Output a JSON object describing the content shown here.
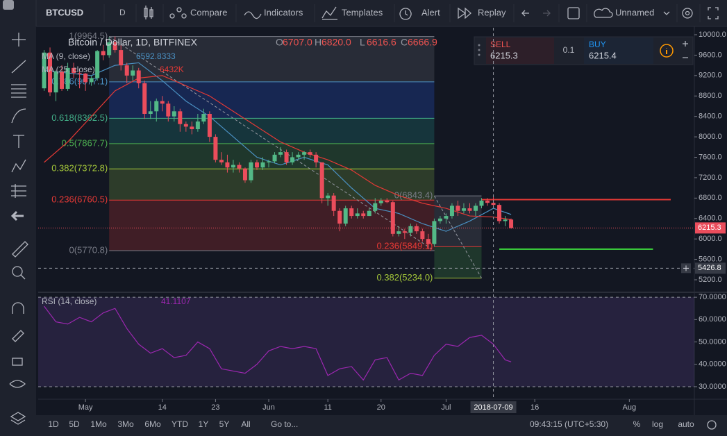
{
  "toolbar": {
    "symbol": "BTCUSD",
    "interval": "D",
    "buttons": [
      "Compare",
      "Indicators",
      "Templates",
      "Alert",
      "Replay"
    ],
    "layout_name": "Unnamed"
  },
  "trade_panel": {
    "sell_label": "SELL",
    "sell_price": "6215.3",
    "quantity": "0.1",
    "buy_label": "BUY",
    "buy_price": "6215.4"
  },
  "bottom_bar": {
    "ranges": [
      "1D",
      "5D",
      "1Mo",
      "3Mo",
      "6Mo",
      "YTD",
      "1Y",
      "5Y",
      "All"
    ],
    "goto": "Go to...",
    "time": "09:43:15 (UTC+5:30)",
    "options": [
      "%",
      "log",
      "auto"
    ]
  },
  "chart_data": {
    "type": "candlestick",
    "title": "Bitcoin / Dollar, 1D, BITFINEX",
    "ohlc": [
      {
        "key": "O",
        "value": "6707.0"
      },
      {
        "key": "H",
        "value": "6820.0"
      },
      {
        "key": "L",
        "value": "6616.6"
      },
      {
        "key": "C",
        "value": "6666.9"
      }
    ],
    "up_color": "#53b987",
    "down_color": "#eb4d5c",
    "x": [
      "2018-04-24",
      "2018-04-25",
      "2018-04-26",
      "2018-04-27",
      "2018-04-28",
      "2018-04-29",
      "2018-04-30",
      "2018-05-01",
      "2018-05-02",
      "2018-05-03",
      "2018-05-04",
      "2018-05-05",
      "2018-05-06",
      "2018-05-07",
      "2018-05-08",
      "2018-05-09",
      "2018-05-10",
      "2018-05-11",
      "2018-05-12",
      "2018-05-13",
      "2018-05-14",
      "2018-05-15",
      "2018-05-16",
      "2018-05-17",
      "2018-05-18",
      "2018-05-19",
      "2018-05-20",
      "2018-05-21",
      "2018-05-22",
      "2018-05-23",
      "2018-05-24",
      "2018-05-25",
      "2018-05-26",
      "2018-05-27",
      "2018-05-28",
      "2018-05-29",
      "2018-05-30",
      "2018-05-31",
      "2018-06-01",
      "2018-06-02",
      "2018-06-03",
      "2018-06-04",
      "2018-06-05",
      "2018-06-06",
      "2018-06-07",
      "2018-06-08",
      "2018-06-09",
      "2018-06-10",
      "2018-06-11",
      "2018-06-12",
      "2018-06-13",
      "2018-06-14",
      "2018-06-15",
      "2018-06-16",
      "2018-06-17",
      "2018-06-18",
      "2018-06-19",
      "2018-06-20",
      "2018-06-21",
      "2018-06-22",
      "2018-06-23",
      "2018-06-24",
      "2018-06-25",
      "2018-06-26",
      "2018-06-27",
      "2018-06-28",
      "2018-06-29",
      "2018-06-30",
      "2018-07-01",
      "2018-07-02",
      "2018-07-03",
      "2018-07-04",
      "2018-07-05",
      "2018-07-06",
      "2018-07-07",
      "2018-07-08",
      "2018-07-09",
      "2018-07-10",
      "2018-07-11",
      "2018-07-12"
    ],
    "open": [
      8950,
      9650,
      8870,
      9280,
      8940,
      9350,
      9250,
      9240,
      9070,
      9150,
      9680,
      9600,
      9850,
      9700,
      9400,
      9200,
      9300,
      9050,
      8450,
      8500,
      8700,
      8650,
      8400,
      8500,
      8250,
      8200,
      8150,
      8300,
      8450,
      8000,
      7550,
      7500,
      7400,
      7450,
      7380,
      7150,
      7500,
      7400,
      7500,
      7520,
      7650,
      7700,
      7500,
      7600,
      7650,
      7700,
      7650,
      7500,
      6800,
      6850,
      6550,
      6300,
      6600,
      6450,
      6500,
      6450,
      6550,
      6700,
      6750,
      6720,
      6100,
      6150,
      6120,
      6250,
      6150,
      6000,
      5900,
      6350,
      6400,
      6450,
      6650,
      6550,
      6600,
      6550,
      6650,
      6750,
      6707,
      6666.9,
      6350,
      6380
    ],
    "high": [
      9700,
      9750,
      9300,
      9400,
      9450,
      9450,
      9300,
      9250,
      9200,
      9700,
      9800,
      9950,
      9964.5,
      9800,
      9450,
      9400,
      9350,
      9100,
      8700,
      8750,
      8800,
      8700,
      8600,
      8550,
      8300,
      8300,
      8450,
      8550,
      8500,
      8050,
      7700,
      7650,
      7550,
      7500,
      7400,
      7550,
      7550,
      7600,
      7550,
      7700,
      7800,
      7750,
      7700,
      7700,
      7720,
      7750,
      7700,
      7500,
      6900,
      6900,
      6600,
      6650,
      6650,
      6600,
      6550,
      6600,
      6800,
      6800,
      6800,
      6750,
      6250,
      6200,
      6300,
      6300,
      6200,
      6100,
      6400,
      6450,
      6500,
      6700,
      6750,
      6700,
      6700,
      6700,
      6800,
      6800,
      6820,
      6700,
      6450,
      6400
    ],
    "low": [
      8900,
      8800,
      8700,
      8900,
      8900,
      9150,
      8950,
      8900,
      9000,
      9100,
      9500,
      9550,
      9650,
      9300,
      9050,
      9100,
      8950,
      8350,
      8350,
      8300,
      8500,
      8300,
      8300,
      8100,
      8100,
      8050,
      8100,
      8250,
      7900,
      7500,
      7450,
      7300,
      7300,
      7300,
      7100,
      7100,
      7350,
      7350,
      7400,
      7480,
      7600,
      7450,
      7450,
      7550,
      7550,
      7600,
      7400,
      6700,
      6650,
      6450,
      6150,
      6250,
      6400,
      6400,
      6400,
      6450,
      6500,
      6650,
      6700,
      6050,
      6050,
      6000,
      6050,
      6100,
      5950,
      5800,
      5850,
      6300,
      6300,
      6400,
      6450,
      6500,
      6500,
      6450,
      6600,
      6650,
      6616.6,
      6300,
      6250,
      6200
    ],
    "close": [
      9650,
      8870,
      9280,
      8940,
      9350,
      9250,
      9240,
      9070,
      9150,
      9680,
      9600,
      9850,
      9700,
      9400,
      9200,
      9300,
      9050,
      8450,
      8500,
      8700,
      8650,
      8400,
      8500,
      8250,
      8200,
      8150,
      8300,
      8450,
      8000,
      7550,
      7500,
      7400,
      7450,
      7380,
      7150,
      7500,
      7400,
      7500,
      7520,
      7650,
      7700,
      7500,
      7600,
      7650,
      7700,
      7650,
      7500,
      6800,
      6850,
      6550,
      6300,
      6600,
      6450,
      6500,
      6450,
      6550,
      6700,
      6750,
      6720,
      6100,
      6150,
      6120,
      6250,
      6150,
      6000,
      5900,
      6350,
      6400,
      6450,
      6650,
      6550,
      6600,
      6550,
      6650,
      6750,
      6707,
      6666.9,
      6350,
      6380,
      6215.3
    ],
    "xlim": [
      "2018-04-23",
      "2018-08-12"
    ],
    "xticks": [
      {
        "value": "2018-05-01",
        "label": "May"
      },
      {
        "value": "2018-05-14",
        "label": "14"
      },
      {
        "value": "2018-05-23",
        "label": "23"
      },
      {
        "value": "2018-06-01",
        "label": "Jun"
      },
      {
        "value": "2018-06-11",
        "label": "11"
      },
      {
        "value": "2018-06-20",
        "label": "20"
      },
      {
        "value": "2018-07-01",
        "label": "Jul"
      },
      {
        "value": "2018-07-16",
        "label": "16"
      },
      {
        "value": "2018-08-01",
        "label": "Aug"
      }
    ],
    "ylim": [
      4969,
      10136
    ],
    "yticks": [
      {
        "value": 10000,
        "label": "10000.0"
      },
      {
        "value": 9600,
        "label": "9600.0"
      },
      {
        "value": 9200,
        "label": "9200.0"
      },
      {
        "value": 8800,
        "label": "8800.0"
      },
      {
        "value": 8400,
        "label": "8400.0"
      },
      {
        "value": 8000,
        "label": "8000.0"
      },
      {
        "value": 7600,
        "label": "7600.0"
      },
      {
        "value": 7200,
        "label": "7200.0"
      },
      {
        "value": 6800,
        "label": "6800.0"
      },
      {
        "value": 6400,
        "label": "6400.0"
      },
      {
        "value": 6000,
        "label": "6000.0"
      },
      {
        "value": 5600,
        "label": "5600.0"
      },
      {
        "value": 5200,
        "label": "5200.0"
      }
    ],
    "studies": [
      {
        "name": "MA (9, close)",
        "value_label": "6592.8333",
        "color": "#4a90c2",
        "x": [
          "2018-04-24",
          "2018-04-28",
          "2018-05-02",
          "2018-05-06",
          "2018-05-10",
          "2018-05-14",
          "2018-05-18",
          "2018-05-22",
          "2018-05-26",
          "2018-05-30",
          "2018-06-03",
          "2018-06-07",
          "2018-06-11",
          "2018-06-15",
          "2018-06-19",
          "2018-06-23",
          "2018-06-27",
          "2018-07-01",
          "2018-07-05",
          "2018-07-09",
          "2018-07-12"
        ],
        "values": [
          9300,
          9250,
          9200,
          9400,
          9450,
          9100,
          8700,
          8400,
          8000,
          7600,
          7450,
          7600,
          7450,
          7000,
          6600,
          6500,
          6300,
          6150,
          6350,
          6600,
          6480
        ]
      },
      {
        "name": "MA (25, close)",
        "value_label": "6432K",
        "color": "#e53935",
        "x": [
          "2018-04-24",
          "2018-04-28",
          "2018-05-02",
          "2018-05-06",
          "2018-05-10",
          "2018-05-14",
          "2018-05-18",
          "2018-05-22",
          "2018-05-26",
          "2018-05-30",
          "2018-06-03",
          "2018-06-07",
          "2018-06-11",
          "2018-06-15",
          "2018-06-19",
          "2018-06-23",
          "2018-06-27",
          "2018-07-01",
          "2018-07-05",
          "2018-07-09",
          "2018-07-12"
        ],
        "values": [
          7500,
          7900,
          8400,
          8900,
          9150,
          9200,
          9000,
          8800,
          8500,
          8200,
          7900,
          7700,
          7550,
          7350,
          7050,
          6850,
          6700,
          6600,
          6450,
          6430,
          6380
        ]
      }
    ],
    "fibs": [
      {
        "x": [
          "2018-05-05",
          "2018-06-29"
        ],
        "levels": [
          {
            "value": 9964.5,
            "label": "1(9964.5)"
          },
          {
            "value": 9077.1,
            "label": "0.786(9077.1)"
          },
          {
            "value": 8362.5,
            "label": "0.618(8362.5)"
          },
          {
            "value": 7867.7,
            "label": "0.5(7867.7)"
          },
          {
            "value": 7372.8,
            "label": "0.382(7372.8)"
          },
          {
            "value": 6760.5,
            "label": "0.236(6760.5)"
          },
          {
            "value": 5770.8,
            "label": "0(5770.8)"
          }
        ],
        "colors": [
          "#787b86",
          "#4a90c2",
          "#43b089",
          "#4caf50",
          "#a5c83a",
          "#e53935",
          "#787b86"
        ],
        "band_colors": [
          "#787b86",
          "#2962ff",
          "#26a69a",
          "#4caf50",
          "#8bc34a",
          "#e53935"
        ]
      },
      {
        "x": [
          "2018-06-29",
          "2018-07-07"
        ],
        "levels": [
          {
            "value": 6843.4,
            "label": "0(6843.4)"
          },
          {
            "value": 5849.1,
            "label": "0.236(5849.1)"
          },
          {
            "value": 5234.0,
            "label": "0.382(5234.0)"
          }
        ],
        "colors": [
          "#787b86",
          "#e53935",
          "#a5c83a"
        ],
        "band_colors": [
          "#787b86",
          "#4caf50"
        ]
      }
    ],
    "horizontal_lines": [
      {
        "value": 6770,
        "color": "#e53935",
        "x": [
          "2018-07-07",
          "2018-08-08"
        ]
      },
      {
        "value": 5800,
        "color": "#3ddc3d",
        "x": [
          "2018-07-10",
          "2018-08-05"
        ]
      }
    ],
    "last_price": 6215.3,
    "crosshair": {
      "x": "2018-07-09",
      "y": 5426.8
    },
    "rsi": {
      "name": "RSI (14, close)",
      "value_label": "41.1107",
      "color": "#9c27b0",
      "x": [
        "2018-04-24",
        "2018-04-26",
        "2018-04-28",
        "2018-04-30",
        "2018-05-02",
        "2018-05-04",
        "2018-05-06",
        "2018-05-08",
        "2018-05-10",
        "2018-05-12",
        "2018-05-14",
        "2018-05-16",
        "2018-05-18",
        "2018-05-20",
        "2018-05-22",
        "2018-05-24",
        "2018-05-26",
        "2018-05-28",
        "2018-05-30",
        "2018-06-01",
        "2018-06-03",
        "2018-06-05",
        "2018-06-07",
        "2018-06-09",
        "2018-06-11",
        "2018-06-13",
        "2018-06-15",
        "2018-06-17",
        "2018-06-19",
        "2018-06-21",
        "2018-06-23",
        "2018-06-25",
        "2018-06-27",
        "2018-06-29",
        "2018-07-01",
        "2018-07-03",
        "2018-07-05",
        "2018-07-07",
        "2018-07-09",
        "2018-07-11",
        "2018-07-12"
      ],
      "values": [
        66,
        59,
        58,
        61,
        59,
        63,
        65,
        56,
        49,
        45,
        47,
        43,
        44,
        50,
        47,
        38,
        37,
        36,
        40,
        46,
        48,
        47,
        48,
        47,
        35,
        38,
        39,
        33,
        42,
        43,
        33,
        36,
        35,
        44,
        49,
        48,
        52,
        53,
        49,
        42,
        41.1
      ],
      "ylim": [
        24.4,
        71.9
      ],
      "yticks": [
        {
          "value": 70,
          "label": "70.0000"
        },
        {
          "value": 60,
          "label": "60.0000"
        },
        {
          "value": 50,
          "label": "50.0000"
        },
        {
          "value": 40,
          "label": "40.0000"
        },
        {
          "value": 30,
          "label": "30.0000"
        }
      ],
      "band": [
        30,
        70
      ]
    }
  }
}
